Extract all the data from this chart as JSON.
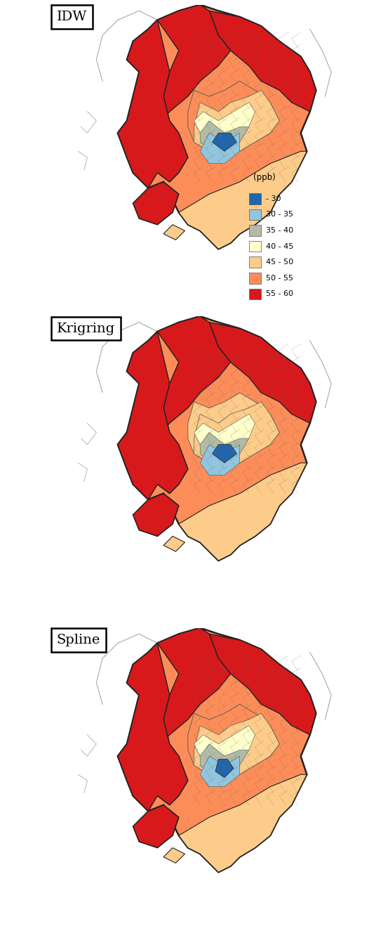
{
  "panels": [
    "IDW",
    "Krigring",
    "Spline"
  ],
  "legend_title": "(ppb)",
  "legend_labels": [
    "- 30",
    "30 - 35",
    "35 - 40",
    "40 - 45",
    "45 - 50",
    "50 - 55",
    "55 - 60"
  ],
  "legend_colors": [
    "#2166ac",
    "#92c5de",
    "#b2bba6",
    "#ffffcc",
    "#fdcc8a",
    "#fc8d59",
    "#d7191c"
  ],
  "background_color": "#ffffff",
  "fig_width": 5.53,
  "fig_height": 13.35,
  "coast_color": "#aaaaaa",
  "border_color": "#222222",
  "inner_border": "#555555"
}
